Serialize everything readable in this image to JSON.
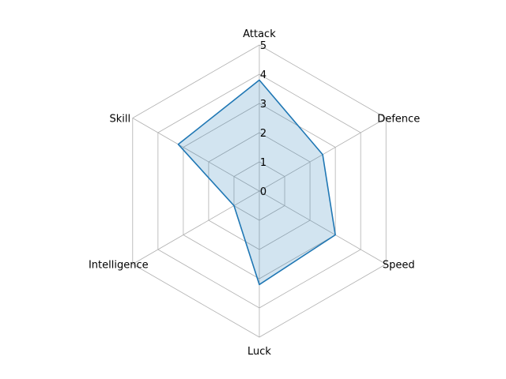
{
  "chart_data": {
    "type": "radar",
    "categories": [
      "Attack",
      "Defence",
      "Speed",
      "Luck",
      "Intelligence",
      "Skill"
    ],
    "series": [
      {
        "values": [
          3.8,
          2.5,
          3.0,
          3.2,
          1.0,
          3.2
        ]
      }
    ],
    "rticks": [
      "0",
      "1",
      "2",
      "3",
      "4",
      "5"
    ],
    "rlim": [
      0,
      5
    ],
    "grid": true,
    "colors": {
      "line": "#1f77b4",
      "fill": "#1f77b4",
      "grid": "#b0b0b0"
    }
  }
}
